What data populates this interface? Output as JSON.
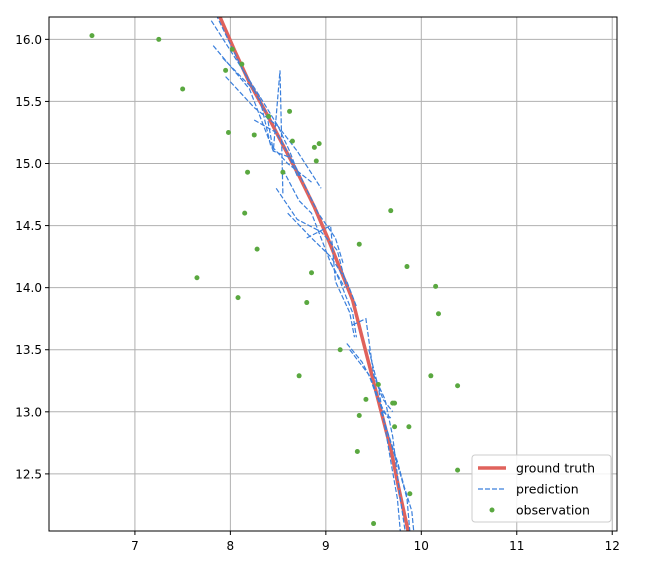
{
  "chart_data": {
    "type": "line",
    "xlim": [
      6.1,
      12.05
    ],
    "ylim": [
      12.04,
      16.18
    ],
    "xticks": [
      7,
      8,
      9,
      10,
      11,
      12
    ],
    "yticks": [
      12.5,
      13.0,
      13.5,
      14.0,
      14.5,
      15.0,
      15.5,
      16.0
    ],
    "xtick_labels": [
      "7",
      "8",
      "9",
      "10",
      "11",
      "12"
    ],
    "ytick_labels": [
      "12.5",
      "13.0",
      "13.5",
      "14.0",
      "14.5",
      "15.0",
      "15.5",
      "16.0"
    ],
    "grid": true,
    "legend_position": "lower-right",
    "colors": {
      "ground_truth": "#e0625c",
      "prediction": "#3a7fdc",
      "observation": "#5aa840",
      "grid": "#b0b0b0"
    },
    "legend": [
      {
        "label": "ground truth",
        "style": "thick-line"
      },
      {
        "label": "prediction",
        "style": "dashed-line"
      },
      {
        "label": "observation",
        "style": "dot"
      }
    ],
    "series": [
      {
        "name": "ground truth",
        "x": [
          7.88,
          8.05,
          8.2,
          8.38,
          8.55,
          8.72,
          8.88,
          9.02,
          9.15,
          9.28,
          9.38,
          9.48,
          9.58,
          9.68,
          9.76,
          9.83,
          9.88
        ],
        "y": [
          16.2,
          15.9,
          15.65,
          15.4,
          15.15,
          14.9,
          14.65,
          14.4,
          14.15,
          13.9,
          13.6,
          13.3,
          13.0,
          12.7,
          12.4,
          12.15,
          11.98
        ]
      },
      {
        "name": "prediction",
        "segments": [
          {
            "x": [
              7.8,
              8.05,
              8.3,
              8.5,
              8.62,
              8.72
            ],
            "y": [
              16.15,
              15.85,
              15.55,
              15.3,
              15.1,
              14.9
            ]
          },
          {
            "x": [
              7.85,
              8.1,
              8.38,
              8.45,
              8.62,
              8.7
            ],
            "y": [
              16.2,
              15.8,
              15.4,
              15.1,
              15.05,
              14.9
            ]
          },
          {
            "x": [
              7.82,
              8.2,
              8.45,
              8.52,
              8.55
            ],
            "y": [
              15.95,
              15.6,
              15.1,
              15.75,
              14.75
            ]
          },
          {
            "x": [
              7.92,
              8.3,
              8.42,
              8.6,
              8.85
            ],
            "y": [
              15.85,
              15.55,
              15.15,
              15.0,
              14.85
            ]
          },
          {
            "x": [
              7.95,
              8.25,
              8.5,
              8.7,
              8.95
            ],
            "y": [
              15.7,
              15.45,
              15.3,
              15.1,
              14.8
            ]
          },
          {
            "x": [
              8.25,
              8.48,
              8.7,
              8.92,
              9.1,
              9.18
            ],
            "y": [
              15.35,
              15.25,
              14.95,
              14.6,
              14.4,
              14.2
            ]
          },
          {
            "x": [
              8.55,
              8.72,
              8.85,
              9.05,
              9.2
            ],
            "y": [
              14.95,
              14.7,
              14.6,
              14.2,
              14.0
            ]
          },
          {
            "x": [
              8.48,
              8.7,
              8.95,
              9.12,
              9.22
            ],
            "y": [
              14.8,
              14.55,
              14.45,
              14.3,
              14.0
            ]
          },
          {
            "x": [
              8.6,
              8.85,
              9.05,
              9.22,
              9.32
            ],
            "y": [
              14.6,
              14.4,
              14.25,
              14.05,
              13.85
            ]
          },
          {
            "x": [
              8.8,
              9.05,
              9.1,
              9.25,
              9.3
            ],
            "y": [
              14.4,
              14.5,
              14.05,
              13.8,
              13.6
            ]
          },
          {
            "x": [
              9.05,
              9.15,
              9.2,
              9.28,
              9.32
            ],
            "y": [
              14.2,
              14.05,
              13.95,
              13.8,
              13.6
            ]
          },
          {
            "x": [
              9.28,
              9.42,
              9.5,
              9.6,
              9.7
            ],
            "y": [
              13.7,
              13.75,
              13.3,
              13.1,
              13.0
            ]
          },
          {
            "x": [
              9.22,
              9.38,
              9.48,
              9.58,
              9.65
            ],
            "y": [
              13.55,
              13.4,
              13.25,
              13.05,
              12.95
            ]
          },
          {
            "x": [
              9.25,
              9.45,
              9.52,
              9.6,
              9.68
            ],
            "y": [
              13.5,
              13.3,
              13.15,
              13.0,
              12.95
            ]
          },
          {
            "x": [
              9.45,
              9.55,
              9.68,
              9.75,
              9.78
            ],
            "y": [
              13.5,
              13.2,
              12.6,
              12.3,
              12.04
            ]
          },
          {
            "x": [
              9.5,
              9.62,
              9.7,
              9.78,
              9.83
            ],
            "y": [
              13.3,
              13.1,
              12.8,
              12.3,
              12.04
            ]
          },
          {
            "x": [
              9.58,
              9.7,
              9.78,
              9.85,
              9.88
            ],
            "y": [
              13.0,
              12.7,
              12.5,
              12.3,
              12.04
            ]
          },
          {
            "x": [
              9.62,
              9.75,
              9.82,
              9.9,
              9.92
            ],
            "y": [
              12.9,
              12.6,
              12.4,
              12.2,
              12.04
            ]
          }
        ]
      },
      {
        "name": "observation",
        "x": [
          6.55,
          7.25,
          7.5,
          7.65,
          7.95,
          7.98,
          8.02,
          8.08,
          8.12,
          8.15,
          8.18,
          8.25,
          8.28,
          8.4,
          8.55,
          8.62,
          8.65,
          8.72,
          8.8,
          8.85,
          8.88,
          8.9,
          8.93,
          9.15,
          9.35,
          9.35,
          9.33,
          9.42,
          9.5,
          9.55,
          9.68,
          9.7,
          9.72,
          9.72,
          9.85,
          9.87,
          9.88,
          10.1,
          10.15,
          10.18,
          10.38,
          10.38
        ],
        "y": [
          16.03,
          16.0,
          15.6,
          14.08,
          15.75,
          15.25,
          15.92,
          13.92,
          15.8,
          14.6,
          14.93,
          15.23,
          14.31,
          15.38,
          14.93,
          15.42,
          15.18,
          13.29,
          13.88,
          14.12,
          15.13,
          15.02,
          15.16,
          13.5,
          14.35,
          12.97,
          12.68,
          13.1,
          12.1,
          13.22,
          14.62,
          13.07,
          13.07,
          12.88,
          14.17,
          12.88,
          12.34,
          13.29,
          14.01,
          13.79,
          13.21,
          12.53
        ]
      }
    ]
  }
}
